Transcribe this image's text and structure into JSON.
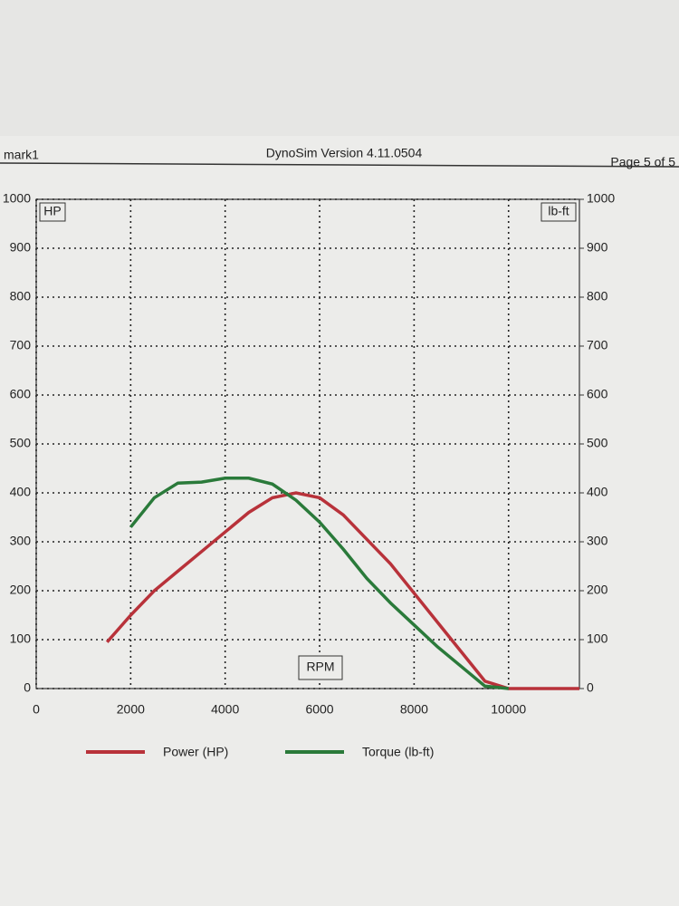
{
  "header": {
    "left": "mark1",
    "center": "DynoSim  Version 4.11.0504",
    "right": "Page 5 of 5"
  },
  "chart_data": {
    "type": "line",
    "x_label": "RPM",
    "y_label": "HP",
    "y2_label": "lb-ft",
    "x": [
      1500,
      2000,
      2500,
      3000,
      3500,
      4000,
      4500,
      5000,
      5500,
      6000,
      6500,
      7000,
      7500,
      8000,
      8500,
      9000,
      9500,
      10000,
      10500,
      11000,
      11500
    ],
    "series": [
      {
        "name": "Power (HP)",
        "color": "#b8323a",
        "values": [
          95,
          150,
          200,
          240,
          280,
          320,
          360,
          390,
          400,
          390,
          355,
          305,
          255,
          195,
          135,
          75,
          15,
          0,
          0,
          0,
          0
        ]
      },
      {
        "name": "Torque (lb-ft)",
        "color": "#2a7a3a",
        "axis": "y2",
        "values": [
          null,
          330,
          390,
          420,
          422,
          430,
          430,
          418,
          385,
          340,
          285,
          225,
          175,
          130,
          85,
          45,
          5,
          0,
          null,
          null,
          null
        ]
      }
    ],
    "xlim": [
      0,
      11500
    ],
    "xticks": [
      0,
      2000,
      4000,
      6000,
      8000,
      10000
    ],
    "ylim": [
      0,
      1000
    ],
    "yticks": [
      0,
      100,
      200,
      300,
      400,
      500,
      600,
      700,
      800,
      900,
      1000
    ],
    "y2lim": [
      0,
      1000
    ],
    "y2ticks": [
      0,
      100,
      200,
      300,
      400,
      500,
      600,
      700,
      800,
      900,
      1000
    ],
    "grid": true
  }
}
